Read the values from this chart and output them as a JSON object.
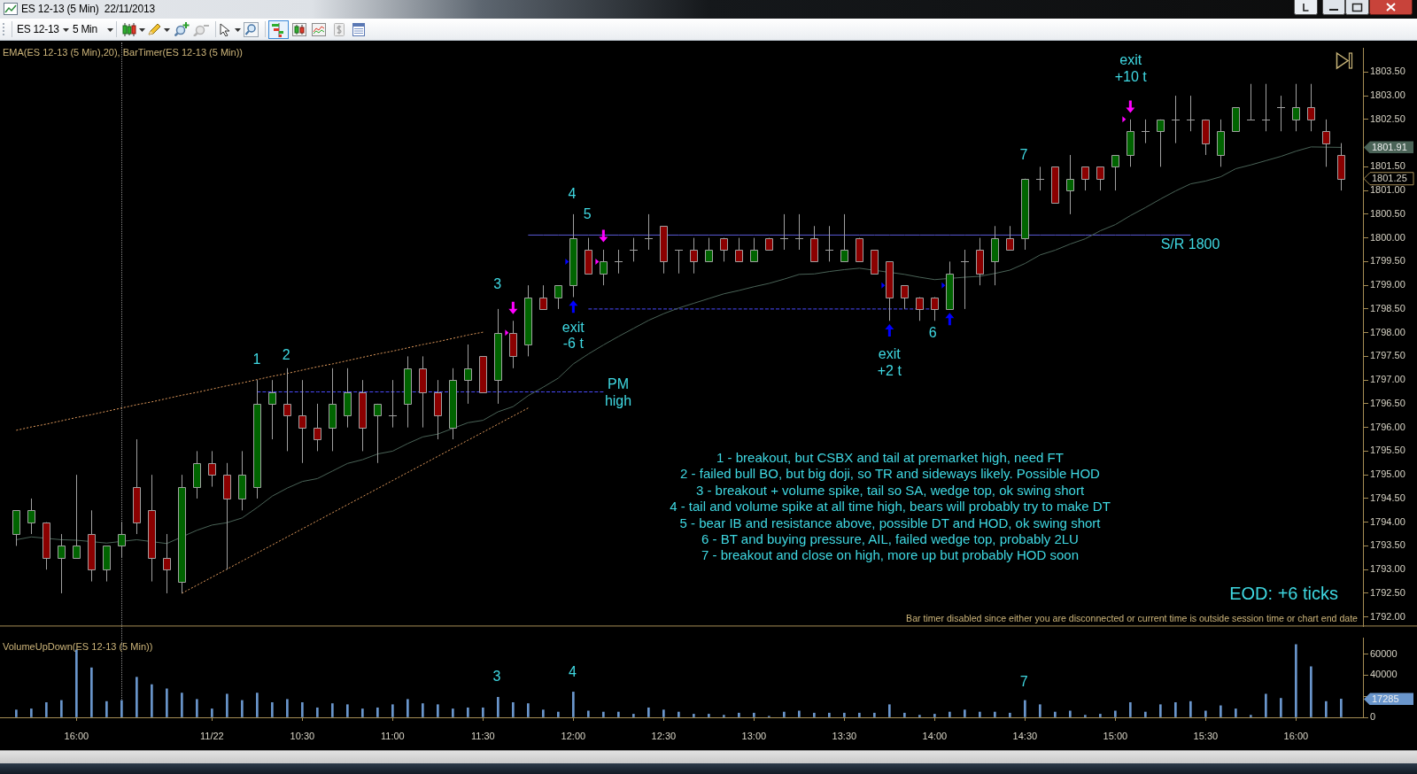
{
  "chart_data": [
    {
      "type": "candlestick",
      "title": "ES 12-13 (5 Min)  22/11/2013",
      "subtitle": "EMA(ES 12-13 (5 Min),20), BarTimer(ES 12-13 (5 Min))",
      "categories": [
        null,
        null,
        null,
        null,
        null,
        null,
        null,
        null,
        null,
        null,
        null,
        null,
        null,
        null,
        null,
        null,
        null,
        null,
        null,
        null,
        null,
        null,
        null,
        null,
        null,
        null,
        null,
        null,
        null,
        null,
        null,
        null,
        null,
        null,
        null,
        null,
        null,
        null,
        null,
        null,
        null,
        null,
        null,
        null,
        null,
        null,
        null,
        null,
        null,
        null,
        null,
        null,
        null,
        null,
        null,
        null,
        null,
        null,
        null,
        null,
        null,
        null,
        null,
        null,
        null,
        null,
        null,
        null,
        null,
        null,
        null,
        null,
        null,
        null,
        null,
        null,
        null,
        null,
        null,
        null,
        null,
        null,
        null,
        null,
        null,
        null,
        null,
        null,
        null
      ],
      "ohlc": [
        [
          1793.75,
          1794.25,
          1793.5,
          1794.25
        ],
        [
          1794,
          1794.5,
          1793.75,
          1794.25
        ],
        [
          1794,
          1794,
          1793,
          1793.25
        ],
        [
          1793.25,
          1793.75,
          1792.5,
          1793.5
        ],
        [
          1793.25,
          1795,
          1793.25,
          1793.5
        ],
        [
          1793.75,
          1794.25,
          1792.75,
          1793
        ],
        [
          1793,
          1793.5,
          1792.75,
          1793.5
        ],
        [
          1793.5,
          1794,
          1793.25,
          1793.75
        ],
        [
          1794.75,
          1795.75,
          1793.75,
          1794
        ],
        [
          1794.25,
          1795,
          1792.75,
          1793.25
        ],
        [
          1793.25,
          1793.75,
          1792.5,
          1793
        ],
        [
          1792.75,
          1795,
          1792.5,
          1794.75
        ],
        [
          1794.75,
          1795.5,
          1794.5,
          1795.25
        ],
        [
          1795.25,
          1795.5,
          1794.75,
          1795
        ],
        [
          1795,
          1795.25,
          1793,
          1794.5
        ],
        [
          1794.5,
          1795.5,
          1794.25,
          1795
        ],
        [
          1794.75,
          1797,
          1794.5,
          1796.5
        ],
        [
          1796.5,
          1797,
          1795.75,
          1796.75
        ],
        [
          1796.5,
          1797.25,
          1795.5,
          1796.25
        ],
        [
          1796.25,
          1797,
          1795.25,
          1796
        ],
        [
          1796,
          1796.5,
          1795.5,
          1795.75
        ],
        [
          1796,
          1797.25,
          1795.5,
          1796.5
        ],
        [
          1796.25,
          1797.25,
          1796,
          1796.75
        ],
        [
          1796.75,
          1797,
          1795.5,
          1796
        ],
        [
          1796.25,
          1796.5,
          1795.25,
          1796.5
        ],
        [
          1796.25,
          1797,
          1796,
          1796.25
        ],
        [
          1796.5,
          1797.5,
          1796,
          1797.25
        ],
        [
          1797.25,
          1797.5,
          1796,
          1796.75
        ],
        [
          1796.75,
          1797,
          1795.75,
          1796.25
        ],
        [
          1796,
          1797.25,
          1795.75,
          1797
        ],
        [
          1797,
          1797.75,
          1796.5,
          1797.25
        ],
        [
          1797.5,
          1797.5,
          1796.75,
          1796.75
        ],
        [
          1797,
          1798.5,
          1796.5,
          1798
        ],
        [
          1798,
          1798.25,
          1797.25,
          1797.5
        ],
        [
          1797.75,
          1799,
          1797.5,
          1798.75
        ],
        [
          1798.75,
          1799,
          1798.5,
          1798.5
        ],
        [
          1798.75,
          1799,
          1798.5,
          1799
        ],
        [
          1799,
          1800.5,
          1798.75,
          1800
        ],
        [
          1799.75,
          1800,
          1799.25,
          1799.25
        ],
        [
          1799.25,
          1799.75,
          1799,
          1799.5
        ],
        [
          1799.5,
          1799.75,
          1799.25,
          1799.5
        ],
        [
          1799.75,
          1800,
          1799.5,
          1799.75
        ],
        [
          1800,
          1800.5,
          1799.75,
          1800
        ],
        [
          1800.25,
          1800.25,
          1799.25,
          1799.5
        ],
        [
          1799.75,
          1799.75,
          1799.25,
          1799.75
        ],
        [
          1799.75,
          1800,
          1799.25,
          1799.5
        ],
        [
          1799.5,
          1800,
          1799.5,
          1799.75
        ],
        [
          1800,
          1800,
          1799.5,
          1799.75
        ],
        [
          1799.75,
          1800,
          1799.5,
          1799.5
        ],
        [
          1799.5,
          1800,
          1799.5,
          1799.75
        ],
        [
          1800,
          1800,
          1799.75,
          1799.75
        ],
        [
          1800,
          1800.5,
          1799.75,
          1800
        ],
        [
          1800,
          1800.5,
          1799.75,
          1800
        ],
        [
          1800,
          1800.25,
          1799.5,
          1799.5
        ],
        [
          1799.75,
          1800.25,
          1799.5,
          1799.75
        ],
        [
          1799.5,
          1800.5,
          1799.5,
          1799.75
        ],
        [
          1800,
          1800,
          1799.5,
          1799.5
        ],
        [
          1799.75,
          1799.75,
          1799.25,
          1799.25
        ],
        [
          1799.5,
          1799.5,
          1798.25,
          1798.75
        ],
        [
          1799,
          1799,
          1798.5,
          1798.75
        ],
        [
          1798.75,
          1798.75,
          1798.25,
          1798.5
        ],
        [
          1798.75,
          1798.75,
          1798.25,
          1798.5
        ],
        [
          1798.5,
          1799.5,
          1798.5,
          1799.25
        ],
        [
          1799.5,
          1799.75,
          1798.5,
          1799.5
        ],
        [
          1799.75,
          1800,
          1799,
          1799.25
        ],
        [
          1799.5,
          1800.25,
          1799,
          1800
        ],
        [
          1800,
          1800.25,
          1799.75,
          1799.75
        ],
        [
          1800,
          1801.25,
          1799.75,
          1801.25
        ],
        [
          1801.25,
          1801.5,
          1801,
          1801.25
        ],
        [
          1801.5,
          1801.5,
          1800.75,
          1800.75
        ],
        [
          1801,
          1801.75,
          1800.5,
          1801.25
        ],
        [
          1801.5,
          1801.5,
          1801,
          1801.25
        ],
        [
          1801.5,
          1801.5,
          1801,
          1801.25
        ],
        [
          1801.5,
          1801.75,
          1801,
          1801.75
        ],
        [
          1801.75,
          1802.5,
          1801.5,
          1802.25
        ],
        [
          1802.25,
          1802.5,
          1802,
          1802.25
        ],
        [
          1802.25,
          1802.5,
          1801.5,
          1802.5
        ],
        [
          1802.5,
          1803,
          1802,
          1802.5
        ],
        [
          1802.5,
          1803,
          1802.25,
          1802.5
        ],
        [
          1802.5,
          1802.5,
          1801.75,
          1802
        ],
        [
          1801.75,
          1802.5,
          1801.5,
          1802.25
        ],
        [
          1802.25,
          1802.75,
          1802.25,
          1802.75
        ],
        [
          1802.5,
          1803.25,
          1802.5,
          1802.5
        ],
        [
          1802.5,
          1803.25,
          1802.25,
          1802.5
        ],
        [
          1802.75,
          1803,
          1802.25,
          1802.75
        ],
        [
          1802.5,
          1803.25,
          1802.25,
          1802.75
        ],
        [
          1802.75,
          1803.25,
          1802.25,
          1802.5
        ],
        [
          1802.25,
          1802.5,
          1801.5,
          1802
        ],
        [
          1801.75,
          1802,
          1801,
          1801.25
        ]
      ],
      "colors": [
        "#006400",
        "#006400",
        "#8b0000",
        "#006400",
        "#006400",
        "#8b0000",
        "#006400",
        "#006400",
        "#8b0000",
        "#8b0000",
        "#8b0000",
        "#006400",
        "#006400",
        "#8b0000",
        "#8b0000",
        "#006400",
        "#006400",
        "#006400",
        "#8b0000",
        "#8b0000",
        "#8b0000",
        "#006400",
        "#006400",
        "#8b0000",
        "#006400",
        "#a0a0a0",
        "#006400",
        "#8b0000",
        "#8b0000",
        "#006400",
        "#006400",
        "#8b0000",
        "#006400",
        "#8b0000",
        "#006400",
        "#8b0000",
        "#006400",
        "#006400",
        "#8b0000",
        "#006400",
        "#a0a0a0",
        "#a0a0a0",
        "#a0a0a0",
        "#8b0000",
        "#a0a0a0",
        "#8b0000",
        "#006400",
        "#8b0000",
        "#8b0000",
        "#006400",
        "#8b0000",
        "#a0a0a0",
        "#a0a0a0",
        "#8b0000",
        "#a0a0a0",
        "#006400",
        "#8b0000",
        "#8b0000",
        "#8b0000",
        "#8b0000",
        "#8b0000",
        "#8b0000",
        "#006400",
        "#a0a0a0",
        "#8b0000",
        "#006400",
        "#8b0000",
        "#006400",
        "#a0a0a0",
        "#8b0000",
        "#006400",
        "#8b0000",
        "#8b0000",
        "#006400",
        "#006400",
        "#a0a0a0",
        "#006400",
        "#a0a0a0",
        "#a0a0a0",
        "#8b0000",
        "#006400",
        "#006400",
        "#a0a0a0",
        "#a0a0a0",
        "#a0a0a0",
        "#006400",
        "#8b0000",
        "#8b0000",
        "#8b0000"
      ],
      "value_labels": [
        null,
        null,
        null,
        null,
        null,
        null,
        null,
        null,
        null,
        null,
        null,
        null,
        null,
        null,
        null,
        null,
        null,
        null,
        null,
        null,
        null,
        null,
        null,
        null,
        null,
        null,
        null,
        null,
        null,
        null,
        null,
        null,
        null,
        null,
        null,
        null,
        null,
        null,
        null,
        null,
        null,
        null,
        null,
        null,
        null,
        null,
        null,
        null,
        null,
        null,
        null,
        null,
        null,
        null,
        null,
        null,
        null,
        null,
        null,
        null,
        null,
        null,
        null,
        null,
        null,
        null,
        null,
        null,
        null,
        null,
        null,
        null,
        null,
        null,
        null,
        null,
        null,
        null,
        null,
        null,
        null,
        null,
        null,
        null,
        null,
        null,
        null,
        null,
        "1801.25"
      ],
      "ylim": [
        1791.8,
        1804.0
      ],
      "yticks": [
        {
          "value": 1792,
          "label": "1792.00"
        },
        {
          "value": 1792.5,
          "label": "1792.50"
        },
        {
          "value": 1793,
          "label": "1793.00"
        },
        {
          "value": 1793.5,
          "label": "1793.50"
        },
        {
          "value": 1794,
          "label": "1794.00"
        },
        {
          "value": 1794.5,
          "label": "1794.50"
        },
        {
          "value": 1795,
          "label": "1795.00"
        },
        {
          "value": 1795.5,
          "label": "1795.50"
        },
        {
          "value": 1796,
          "label": "1796.00"
        },
        {
          "value": 1796.5,
          "label": "1796.50"
        },
        {
          "value": 1797,
          "label": "1797.00"
        },
        {
          "value": 1797.5,
          "label": "1797.50"
        },
        {
          "value": 1798,
          "label": "1798.00"
        },
        {
          "value": 1798.5,
          "label": "1798.50"
        },
        {
          "value": 1799,
          "label": "1799.00"
        },
        {
          "value": 1799.5,
          "label": "1799.50"
        },
        {
          "value": 1800,
          "label": "1800.00"
        },
        {
          "value": 1800.5,
          "label": "1800.50"
        },
        {
          "value": 1801,
          "label": "1801.00"
        },
        {
          "value": 1801.5,
          "label": "1801.50"
        },
        {
          "value": 1802.5,
          "label": "1802.50"
        },
        {
          "value": 1803,
          "label": "1803.00"
        },
        {
          "value": 1803.5,
          "label": "1803.50"
        }
      ],
      "tick_labels": "y",
      "series": [
        {
          "type": "line",
          "color": "#4a6357",
          "values": [
            1793.63,
            1793.69,
            null,
            1793.63,
            1793.62,
            null,
            1793.56,
            null,
            1793.63,
            null,
            1793.55,
            null,
            1793.83,
            1793.94,
            1793.99,
            1794.09,
            1794.31,
            1794.55,
            1794.72,
            1794.86,
            1794.92,
            1795.08,
            1795.24,
            1795.32,
            1795.44,
            1795.5,
            1795.66,
            1795.8,
            1795.86,
            null,
            1796.1,
            1796.15,
            1796.33,
            1796.44,
            1796.67,
            1796.85,
            1797.04,
            1797.34,
            1797.55,
            1797.74,
            1797.92,
            1798.09,
            1798.26,
            1798.4,
            1798.52,
            1798.62,
            1798.72,
            1798.82,
            1798.89,
            1798.97,
            1799.04,
            1799.13,
            1799.23,
            1799.24,
            1799.29,
            1799.33,
            1799.36,
            null,
            null,
            1799.23,
            1799.17,
            1799.12,
            null,
            1799.17,
            1799.19,
            1799.25,
            1799.32,
            1799.46,
            1799.64,
            1799.74,
            1799.87,
            1799.98,
            1800.15,
            1800.28,
            1800.47,
            1800.64,
            1800.82,
            1800.99,
            1801.14,
            1801.2,
            1801.29,
            1801.46,
            1801.54,
            1801.63,
            1801.72,
            1801.83,
            1801.92,
            null,
            1801.91
          ]
        },
        {
          "type": "line",
          "color": "#e09a5c",
          "line_style": "dotted",
          "values": [
            1795.94,
            1796.01,
            1796.07,
            1796.14,
            1796.21,
            1796.27,
            1796.34,
            1796.41,
            1796.48,
            1796.54,
            1796.61,
            1796.68,
            1796.74,
            1796.81,
            1796.88,
            1796.94,
            1797.01,
            1797.08,
            1797.14,
            1797.21,
            1797.28,
            1797.34,
            1797.41,
            1797.48,
            1797.55,
            1797.61,
            1797.68,
            1797.75,
            1797.81,
            1797.88,
            1797.95,
            1798.01,
            null,
            null,
            null,
            null,
            null,
            null,
            null,
            null,
            null,
            null,
            null,
            null,
            null,
            null,
            null,
            null,
            null,
            null,
            null,
            null,
            null,
            null,
            null,
            null,
            null,
            null,
            null,
            null,
            null,
            null,
            null,
            null,
            null,
            null,
            null,
            null,
            null,
            null,
            null,
            null,
            null,
            null,
            null,
            null,
            null,
            null,
            null,
            null,
            null,
            null,
            null,
            null,
            null,
            null,
            null,
            null,
            null
          ]
        },
        {
          "type": "line",
          "color": "#e09a5c",
          "line_style": "dotted",
          "values": [
            null,
            null,
            null,
            null,
            null,
            null,
            null,
            null,
            null,
            null,
            null,
            1792.5,
            1792.67,
            1792.84,
            1793.01,
            1793.18,
            1793.35,
            1793.52,
            1793.69,
            1793.86,
            1794.03,
            1794.2,
            1794.37,
            1794.54,
            1794.71,
            1794.88,
            1795.05,
            1795.22,
            1795.39,
            1795.56,
            1795.73,
            1795.9,
            1796.07,
            1796.24,
            1796.41,
            null,
            null,
            null,
            null,
            null,
            null,
            null,
            null,
            null,
            null,
            null,
            null,
            null,
            null,
            null,
            null,
            null,
            null,
            null,
            null,
            null,
            null,
            null,
            null,
            null,
            null,
            null,
            null,
            null,
            null,
            null,
            null,
            null,
            null,
            null,
            null,
            null,
            null,
            null,
            null,
            null,
            null,
            null,
            null,
            null,
            null,
            null,
            null,
            null,
            null,
            null,
            null,
            null,
            null
          ]
        },
        {
          "type": "line",
          "color": "#4b4bff",
          "line_style": "dashed",
          "values": [
            null,
            null,
            null,
            null,
            null,
            null,
            null,
            null,
            null,
            null,
            null,
            null,
            null,
            null,
            null,
            null,
            1796.75,
            null,
            1796.75,
            1796.75,
            1796.75,
            1796.75,
            null,
            null,
            1796.75,
            1796.75,
            null,
            null,
            null,
            null,
            1796.75,
            null,
            1796.75,
            1796.75,
            1796.75,
            1796.75,
            1796.75,
            1796.75,
            1796.75,
            1796.75,
            null,
            null,
            null,
            null,
            null,
            null,
            null,
            null,
            null,
            null,
            null,
            null,
            null,
            null,
            null,
            null,
            null,
            null,
            null,
            null,
            null,
            null,
            null,
            null,
            null,
            null,
            null,
            null,
            null,
            null,
            null,
            null,
            null,
            null,
            null,
            null,
            null,
            null,
            null,
            null,
            null,
            null,
            null,
            null,
            null,
            null,
            null,
            null,
            null
          ]
        },
        {
          "type": "line",
          "color": "#4b4bff",
          "line_style": "dashed",
          "values": [
            null,
            null,
            null,
            null,
            null,
            null,
            null,
            null,
            null,
            null,
            null,
            null,
            null,
            null,
            null,
            null,
            null,
            null,
            null,
            null,
            null,
            null,
            null,
            null,
            null,
            null,
            null,
            null,
            null,
            null,
            null,
            null,
            null,
            null,
            null,
            null,
            null,
            null,
            1798.5,
            1798.5,
            1798.5,
            1798.5,
            1798.5,
            1798.5,
            1798.5,
            1798.5,
            1798.5,
            1798.5,
            1798.5,
            1798.5,
            1798.5,
            1798.5,
            1798.5,
            1798.5,
            1798.5,
            1798.5,
            1798.5,
            1798.5,
            1798.5,
            1798.5,
            null,
            1798.5,
            null,
            null,
            null,
            null,
            null,
            null,
            null,
            null,
            null,
            null,
            null,
            null,
            null,
            null,
            null,
            null,
            null,
            null,
            null,
            null,
            null,
            null,
            null,
            null,
            null,
            null,
            null
          ]
        },
        {
          "type": "line",
          "color": "#5a5ad8",
          "values": [
            null,
            null,
            null,
            null,
            null,
            null,
            null,
            null,
            null,
            null,
            null,
            null,
            null,
            null,
            null,
            null,
            null,
            null,
            null,
            null,
            null,
            null,
            null,
            null,
            null,
            null,
            null,
            null,
            null,
            null,
            null,
            null,
            null,
            null,
            1800.06,
            1800.06,
            1800.06,
            1800.06,
            1800.06,
            1800.06,
            1800.06,
            1800.06,
            1800.06,
            null,
            1800.06,
            1800.06,
            1800.06,
            1800.06,
            1800.06,
            1800.06,
            1800.06,
            1800.06,
            1800.06,
            1800.06,
            1800.06,
            1800.06,
            1800.06,
            1800.06,
            1800.06,
            1800.06,
            1800.06,
            1800.06,
            1800.06,
            1800.06,
            1800.06,
            1800.06,
            1800.06,
            null,
            1800.06,
            1800.06,
            1800.06,
            1800.06,
            1800.06,
            1800.06,
            1800.06,
            1800.06,
            1800.06,
            1800.06,
            1800.06,
            null,
            null,
            null,
            null,
            null,
            null,
            null,
            null,
            null,
            null
          ]
        },
        {
          "type": "scatter",
          "marker": "triangle",
          "color": "#0000ff",
          "values": [
            null,
            null,
            null,
            null,
            null,
            null,
            null,
            null,
            null,
            null,
            null,
            null,
            null,
            null,
            null,
            null,
            null,
            null,
            null,
            null,
            null,
            null,
            null,
            null,
            null,
            null,
            null,
            null,
            null,
            null,
            null,
            null,
            null,
            null,
            null,
            null,
            null,
            1798.55,
            null,
            null,
            null,
            null,
            null,
            null,
            null,
            null,
            null,
            null,
            null,
            null,
            null,
            null,
            null,
            null,
            null,
            null,
            null,
            null,
            1798.05,
            null,
            null,
            null,
            1798.29,
            null,
            null,
            null,
            null,
            null,
            null,
            null,
            null,
            null,
            null,
            null,
            null,
            null,
            null,
            null,
            null,
            null,
            null,
            null,
            null,
            null,
            null,
            null,
            null,
            null,
            null
          ]
        },
        {
          "type": "scatter",
          "marker": "triangle",
          "color": "#0000ff",
          "values": [
            null,
            null,
            null,
            null,
            null,
            null,
            null,
            null,
            null,
            null,
            null,
            null,
            null,
            null,
            null,
            null,
            null,
            null,
            null,
            null,
            null,
            null,
            null,
            null,
            null,
            null,
            null,
            null,
            null,
            null,
            null,
            null,
            null,
            null,
            null,
            null,
            null,
            1799.5,
            null,
            null,
            null,
            null,
            null,
            null,
            null,
            null,
            null,
            null,
            null,
            null,
            null,
            null,
            null,
            null,
            null,
            null,
            null,
            null,
            1799,
            null,
            null,
            null,
            1799,
            null,
            null,
            null,
            null,
            null,
            null,
            null,
            null,
            null,
            null,
            null,
            null,
            null,
            null,
            null,
            null,
            null,
            null,
            null,
            null,
            null,
            null,
            null,
            null,
            null,
            null
          ]
        },
        {
          "type": "scatter",
          "marker": "triangle",
          "color": "#ff00ff",
          "values": [
            null,
            null,
            null,
            null,
            null,
            null,
            null,
            null,
            null,
            null,
            null,
            null,
            null,
            null,
            null,
            null,
            null,
            null,
            null,
            null,
            null,
            null,
            null,
            null,
            null,
            null,
            null,
            null,
            null,
            null,
            null,
            null,
            null,
            1798.52,
            null,
            null,
            null,
            null,
            null,
            1800.04,
            null,
            null,
            null,
            null,
            null,
            null,
            null,
            null,
            null,
            null,
            null,
            null,
            null,
            null,
            null,
            null,
            null,
            null,
            null,
            null,
            null,
            null,
            null,
            null,
            null,
            null,
            null,
            null,
            null,
            null,
            null,
            null,
            null,
            null,
            1802.77,
            null,
            null,
            null,
            null,
            null,
            null,
            null,
            null,
            null,
            null,
            null,
            null,
            null,
            null
          ]
        },
        {
          "type": "scatter",
          "marker": "triangle",
          "color": "#ff00ff",
          "values": [
            null,
            null,
            null,
            null,
            null,
            null,
            null,
            null,
            null,
            null,
            null,
            null,
            null,
            null,
            null,
            null,
            null,
            null,
            null,
            null,
            null,
            null,
            null,
            null,
            null,
            null,
            null,
            null,
            null,
            null,
            null,
            null,
            null,
            1798,
            null,
            null,
            null,
            null,
            null,
            1799.5,
            null,
            null,
            null,
            null,
            null,
            null,
            null,
            null,
            null,
            null,
            null,
            null,
            null,
            null,
            null,
            null,
            null,
            null,
            null,
            null,
            null,
            null,
            null,
            null,
            null,
            null,
            null,
            null,
            null,
            null,
            null,
            null,
            null,
            null,
            1802.5,
            null,
            null,
            null,
            null,
            null,
            null,
            null,
            null,
            null,
            null,
            null,
            null,
            null,
            null
          ]
        }
      ],
      "annotations": [
        "ES 12-13",
        "5 Min",
        "1",
        "2",
        "3",
        "4",
        "5",
        "exit\n-6 t",
        "PM\nhigh",
        "exit\n+2 t",
        "6",
        "7",
        "exit\n+10 t",
        "S/R 1800",
        "1801.91",
        "1 - breakout, but CSBX and tail at premarket high, need FT",
        "2 - failed bull BO, but big doji, so TR and sideways likely. Possible HOD",
        "3 - breakout + volume spike, tail so SA, wedge top, ok swing short",
        "4 - tail and volume spike at all time high, bears will probably try to make DT",
        "5 - bear IB and resistance above, possible DT and HOD, ok swing short",
        "6 - BT and buying pressure, AIL, failed wedge top, probably 2LU",
        "7 - breakout and close on high, more up but probably HOD soon",
        "EOD: +6 ticks",
        "Bar timer disabled since either you are disconnected or current time is outside session time or chart end date"
      ]
    },
    {
      "type": "bar",
      "title": "VolumeUpDown(ES 12-13 (5 Min))",
      "categories": [
        null,
        null,
        null,
        null,
        "16:00",
        null,
        null,
        null,
        null,
        null,
        null,
        null,
        null,
        "11/22",
        null,
        null,
        null,
        null,
        null,
        "10:30",
        null,
        null,
        null,
        null,
        null,
        "11:00",
        null,
        null,
        null,
        null,
        null,
        "11:30",
        null,
        null,
        null,
        null,
        null,
        "12:00",
        null,
        null,
        null,
        null,
        null,
        "12:30",
        null,
        null,
        null,
        null,
        null,
        "13:00",
        null,
        null,
        null,
        null,
        null,
        "13:30",
        null,
        null,
        null,
        null,
        null,
        "14:00",
        null,
        null,
        null,
        null,
        null,
        "14:30",
        null,
        null,
        null,
        null,
        null,
        "15:00",
        null,
        null,
        null,
        null,
        null,
        "15:30",
        null,
        null,
        null,
        null,
        null,
        "16:00",
        null,
        null,
        null
      ],
      "values": [
        7000,
        8000,
        14000,
        16000,
        64000,
        47000,
        15000,
        16000,
        38000,
        31000,
        27000,
        23000,
        17000,
        8000,
        22000,
        16000,
        23000,
        14000,
        17000,
        14000,
        9000,
        13000,
        12000,
        8000,
        9000,
        12000,
        17000,
        13000,
        12000,
        8000,
        9000,
        9000,
        19000,
        14000,
        13000,
        7000,
        5000,
        24000,
        6000,
        5000,
        5000,
        3000,
        9000,
        7000,
        5000,
        3000,
        3000,
        2000,
        4000,
        4000,
        1000,
        5000,
        6000,
        4000,
        4000,
        4000,
        4000,
        4000,
        12000,
        4000,
        2000,
        3000,
        5000,
        7000,
        5000,
        5000,
        4000,
        16000,
        12000,
        5000,
        6000,
        2000,
        3000,
        6000,
        14000,
        5000,
        12000,
        14000,
        15000,
        6000,
        11000,
        8000,
        2000,
        22000,
        18000,
        69000,
        48000,
        15000,
        17285
      ],
      "color": "#6a96cc",
      "ylim": [
        0,
        75000
      ],
      "yticks": [
        0,
        {
          "value": 20000,
          "label": null
        },
        40000,
        60000
      ],
      "annotations": [
        "3",
        "4",
        "7",
        "17285"
      ]
    }
  ]
}
